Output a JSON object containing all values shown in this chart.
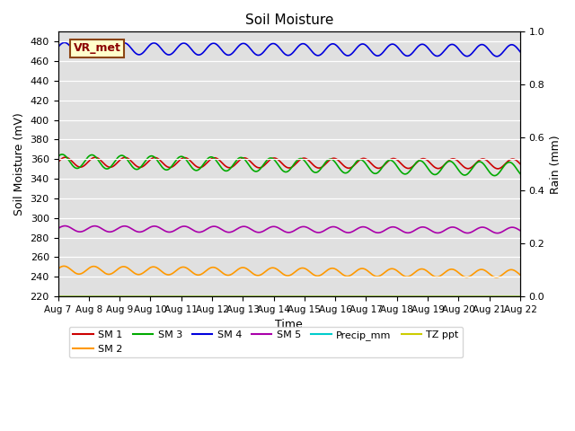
{
  "title": "Soil Moisture",
  "xlabel": "Time",
  "ylabel_left": "Soil Moisture (mV)",
  "ylabel_right": "Rain (mm)",
  "ylim_left": [
    220,
    490
  ],
  "ylim_right": [
    0.0,
    1.0
  ],
  "yticks_left": [
    220,
    240,
    260,
    280,
    300,
    320,
    340,
    360,
    380,
    400,
    420,
    440,
    460,
    480
  ],
  "yticks_right": [
    0.0,
    0.2,
    0.4,
    0.6,
    0.8,
    1.0
  ],
  "x_start": 0,
  "x_end": 15,
  "n_points": 2000,
  "bg_color": "#e0e0e0",
  "annotation_text": "VR_met",
  "series": {
    "SM1": {
      "color": "#cc0000",
      "base": 357,
      "amp": 5,
      "freq": 15.5,
      "trend": -0.12,
      "phase": 0.0
    },
    "SM2": {
      "color": "#ff9900",
      "base": 247,
      "amp": 4,
      "freq": 15.5,
      "trend": -0.25,
      "phase": 0.3
    },
    "SM3": {
      "color": "#00aa00",
      "base": 358,
      "amp": 7,
      "freq": 15.5,
      "trend": -0.55,
      "phase": 0.7
    },
    "SM4": {
      "color": "#0000dd",
      "base": 473,
      "amp": 6,
      "freq": 15.5,
      "trend": -0.15,
      "phase": 0.2
    },
    "SM5": {
      "color": "#aa00aa",
      "base": 289,
      "amp": 3,
      "freq": 15.5,
      "trend": -0.1,
      "phase": 0.1
    },
    "Precip_mm": {
      "color": "#00cccc",
      "base": 220,
      "amp": 0,
      "freq": 0,
      "trend": 0,
      "phase": 0
    },
    "TZ_ppt": {
      "color": "#cccc00",
      "base": 220,
      "amp": 0,
      "freq": 0,
      "trend": 0,
      "phase": 0
    }
  },
  "xtick_labels": [
    "Aug 7",
    "Aug 8",
    "Aug 9",
    "Aug 10",
    "Aug 11",
    "Aug 12",
    "Aug 13",
    "Aug 14",
    "Aug 15",
    "Aug 16",
    "Aug 17",
    "Aug 18",
    "Aug 19",
    "Aug 20",
    "Aug 21",
    "Aug 22"
  ],
  "xtick_positions": [
    0,
    1,
    2,
    3,
    4,
    5,
    6,
    7,
    8,
    9,
    10,
    11,
    12,
    13,
    14,
    15
  ],
  "legend_labels": [
    "SM 1",
    "SM 2",
    "SM 3",
    "SM 4",
    "SM 5",
    "Precip_mm",
    "TZ ppt"
  ],
  "legend_colors": [
    "#cc0000",
    "#ff9900",
    "#00aa00",
    "#0000dd",
    "#aa00aa",
    "#00cccc",
    "#cccc00"
  ]
}
